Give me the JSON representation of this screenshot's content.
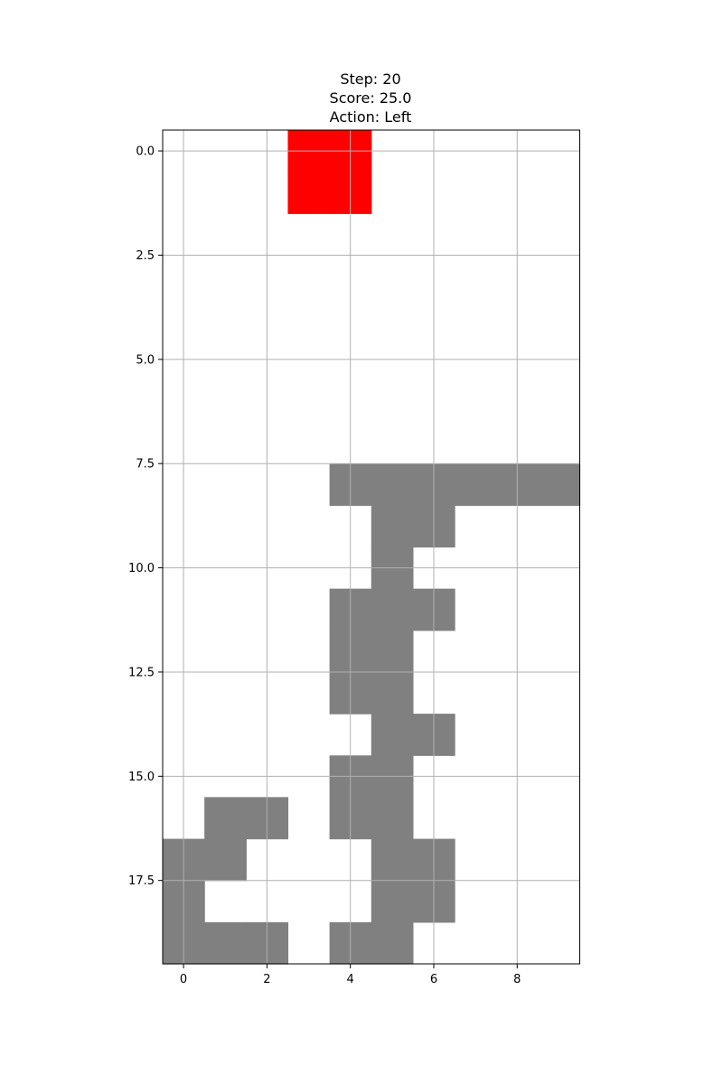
{
  "header": {
    "step_line": "Step: 20",
    "score_line": "Score: 25.0",
    "action_line": "Action: Left"
  },
  "board": {
    "columns": 10,
    "rows": 20,
    "x_ticks": [
      0,
      2,
      4,
      6,
      8
    ],
    "y_ticks": [
      0.0,
      2.5,
      5.0,
      7.5,
      10.0,
      12.5,
      15.0,
      17.5
    ],
    "y_tick_labels": [
      "0.0",
      "2.5",
      "5.0",
      "7.5",
      "10.0",
      "12.5",
      "15.0",
      "17.5"
    ],
    "x_tick_labels": [
      "0",
      "2",
      "4",
      "6",
      "8"
    ],
    "grid": true,
    "colors": {
      "active_piece": "#ff0000",
      "locked_block": "#808080",
      "empty": "#ffffff",
      "grid": "#b0b0b0",
      "frame": "#000000"
    },
    "active_piece": [
      [
        0,
        3
      ],
      [
        0,
        4
      ],
      [
        1,
        3
      ],
      [
        1,
        4
      ]
    ],
    "locked_cells": [
      [
        8,
        4
      ],
      [
        8,
        5
      ],
      [
        8,
        6
      ],
      [
        8,
        7
      ],
      [
        8,
        8
      ],
      [
        8,
        9
      ],
      [
        9,
        5
      ],
      [
        9,
        6
      ],
      [
        10,
        5
      ],
      [
        11,
        4
      ],
      [
        11,
        5
      ],
      [
        11,
        6
      ],
      [
        12,
        4
      ],
      [
        12,
        5
      ],
      [
        13,
        4
      ],
      [
        13,
        5
      ],
      [
        14,
        5
      ],
      [
        14,
        6
      ],
      [
        15,
        4
      ],
      [
        15,
        5
      ],
      [
        16,
        1
      ],
      [
        16,
        2
      ],
      [
        16,
        4
      ],
      [
        16,
        5
      ],
      [
        17,
        0
      ],
      [
        17,
        1
      ],
      [
        17,
        5
      ],
      [
        17,
        6
      ],
      [
        18,
        0
      ],
      [
        18,
        5
      ],
      [
        18,
        6
      ],
      [
        19,
        0
      ],
      [
        19,
        1
      ],
      [
        19,
        2
      ],
      [
        19,
        4
      ],
      [
        19,
        5
      ]
    ]
  }
}
